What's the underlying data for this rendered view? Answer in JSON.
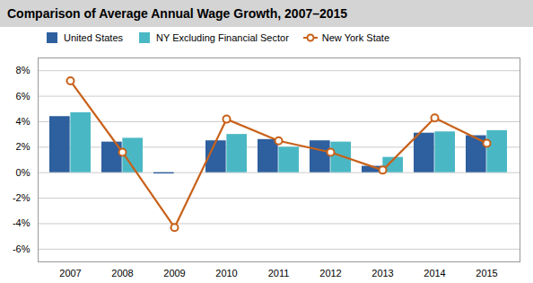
{
  "chart_data": {
    "type": "bar",
    "title": "Comparison of Average Annual Wage Growth, 2007–2015",
    "categories": [
      "2007",
      "2008",
      "2009",
      "2010",
      "2011",
      "2012",
      "2013",
      "2014",
      "2015"
    ],
    "series": [
      {
        "name": "United States",
        "type": "bar",
        "color": "#2e5f9e",
        "values": [
          4.4,
          2.4,
          -0.1,
          2.5,
          2.6,
          2.5,
          0.5,
          3.1,
          2.9
        ]
      },
      {
        "name": "NY Excluding Financial Sector",
        "type": "bar",
        "color": "#4ab8c4",
        "values": [
          4.7,
          2.7,
          0.0,
          3.0,
          2.0,
          2.4,
          1.2,
          3.2,
          3.3
        ]
      },
      {
        "name": "New York State",
        "type": "line",
        "color": "#c8611a",
        "marker": "circle",
        "values": [
          7.2,
          1.6,
          -4.3,
          4.2,
          2.5,
          1.6,
          0.2,
          4.3,
          2.3
        ]
      }
    ],
    "ylim": [
      -7,
      9
    ],
    "yticks": [
      {
        "value": -6,
        "label": "-6%"
      },
      {
        "value": -4,
        "label": "-4%"
      },
      {
        "value": -2,
        "label": "-2%"
      },
      {
        "value": 0,
        "label": "0%"
      },
      {
        "value": 2,
        "label": "2%"
      },
      {
        "value": 4,
        "label": "4%"
      },
      {
        "value": 6,
        "label": "6%"
      },
      {
        "value": 8,
        "label": "8%"
      }
    ],
    "grid": true,
    "legend": "top"
  }
}
